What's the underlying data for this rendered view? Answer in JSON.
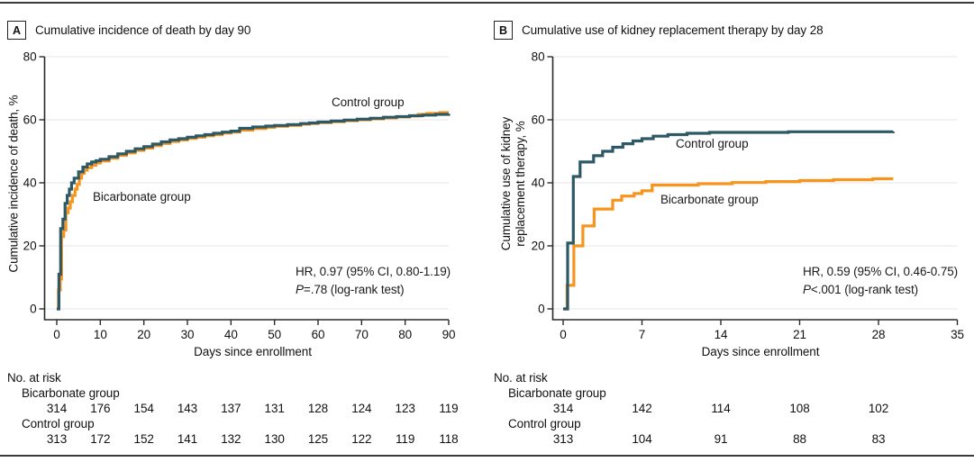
{
  "x_axis_label": "Days since enrollment",
  "risk_header": "No. at risk",
  "colors": {
    "control": "#2D5966",
    "bicarbonate": "#F7941E",
    "gridline": "#E4E4E4",
    "axis": "#2A2A2A",
    "rule": "#3A3A3A"
  },
  "chart_data": [
    {
      "panel_label": "A",
      "title": "Cumulative incidence of death by day 90",
      "type": "line",
      "subtype": "kaplan-meier-step",
      "ylabel": "Cumulative incidence of death, %",
      "ylabel_lines": [
        "Cumulative incidence of death, %"
      ],
      "xlabel": "Days since enrollment",
      "xlim": [
        0,
        90
      ],
      "ylim": [
        0,
        80
      ],
      "xticks": [
        0,
        10,
        20,
        30,
        40,
        50,
        60,
        70,
        80,
        90
      ],
      "yticks": [
        0,
        20,
        40,
        60,
        80
      ],
      "grid": "horizontal",
      "legend_position": "inline-labels",
      "series": [
        {
          "name": "Control group",
          "color": "#2D5966",
          "points": [
            [
              0,
              0
            ],
            [
              0.5,
              11
            ],
            [
              0.9,
              25.5
            ],
            [
              1.4,
              28.5
            ],
            [
              1.9,
              33.5
            ],
            [
              2.4,
              36
            ],
            [
              2.9,
              38
            ],
            [
              3.4,
              40
            ],
            [
              4,
              41.5
            ],
            [
              5,
              43.5
            ],
            [
              6,
              45
            ],
            [
              7,
              46
            ],
            [
              8,
              46.6
            ],
            [
              9,
              47
            ],
            [
              10,
              47.5
            ],
            [
              12,
              48.3
            ],
            [
              14,
              49.2
            ],
            [
              16,
              50
            ],
            [
              18,
              50.8
            ],
            [
              20,
              51.5
            ],
            [
              22,
              52.3
            ],
            [
              24,
              53
            ],
            [
              26,
              53.6
            ],
            [
              28,
              54
            ],
            [
              30,
              54.5
            ],
            [
              32,
              54.9
            ],
            [
              34,
              55.3
            ],
            [
              36,
              55.7
            ],
            [
              38,
              56.1
            ],
            [
              40,
              56.4
            ],
            [
              42,
              57.3
            ],
            [
              45,
              57.7
            ],
            [
              48,
              58
            ],
            [
              50,
              58.2
            ],
            [
              53,
              58.5
            ],
            [
              56,
              58.8
            ],
            [
              58,
              59
            ],
            [
              60,
              59.3
            ],
            [
              63,
              59.6
            ],
            [
              66,
              59.9
            ],
            [
              69,
              60.2
            ],
            [
              72,
              60.5
            ],
            [
              75,
              60.8
            ],
            [
              78,
              61
            ],
            [
              81,
              61.3
            ],
            [
              84,
              61.5
            ],
            [
              87,
              61.7
            ],
            [
              90,
              61.9
            ]
          ]
        },
        {
          "name": "Bicarbonate group",
          "color": "#F7941E",
          "points": [
            [
              0,
              0
            ],
            [
              0.4,
              6
            ],
            [
              0.8,
              9.5
            ],
            [
              1.1,
              23
            ],
            [
              1.6,
              25
            ],
            [
              2.1,
              30.5
            ],
            [
              2.6,
              32
            ],
            [
              3.1,
              34
            ],
            [
              3.6,
              36
            ],
            [
              4.2,
              38
            ],
            [
              4.7,
              39.5
            ],
            [
              5.2,
              41.5
            ],
            [
              5.7,
              43
            ],
            [
              6.3,
              44
            ],
            [
              7,
              44.8
            ],
            [
              8,
              45.6
            ],
            [
              9,
              46.3
            ],
            [
              10,
              46.9
            ],
            [
              12,
              47.8
            ],
            [
              14,
              48.7
            ],
            [
              16,
              49.5
            ],
            [
              18,
              50.3
            ],
            [
              20,
              51
            ],
            [
              22,
              51.8
            ],
            [
              24,
              52.5
            ],
            [
              26,
              53.1
            ],
            [
              28,
              53.6
            ],
            [
              30,
              54.1
            ],
            [
              32,
              54.5
            ],
            [
              34,
              54.9
            ],
            [
              36,
              55.3
            ],
            [
              38,
              55.8
            ],
            [
              40,
              56.1
            ],
            [
              42,
              56.7
            ],
            [
              45,
              57.2
            ],
            [
              48,
              57.6
            ],
            [
              50,
              57.9
            ],
            [
              53,
              58.2
            ],
            [
              56,
              58.6
            ],
            [
              58,
              58.8
            ],
            [
              60,
              59.1
            ],
            [
              63,
              59.4
            ],
            [
              66,
              59.7
            ],
            [
              69,
              60
            ],
            [
              72,
              60.3
            ],
            [
              75,
              60.6
            ],
            [
              78,
              60.9
            ],
            [
              81,
              61.2
            ],
            [
              83,
              61.7
            ],
            [
              85,
              62
            ],
            [
              88,
              62.3
            ],
            [
              90,
              62.3
            ]
          ]
        }
      ],
      "annotation": {
        "hr": "HR, 0.97 (95% CI, 0.80-1.19)",
        "p_label": "P",
        "p_text": "=.78 (log-rank test)"
      },
      "risk_table": {
        "header": "No. at risk",
        "rows": [
          {
            "label": "Bicarbonate group",
            "values": [
              "314",
              "176",
              "154",
              "143",
              "137",
              "131",
              "128",
              "124",
              "123",
              "119"
            ]
          },
          {
            "label": "Control group",
            "values": [
              "313",
              "172",
              "152",
              "141",
              "132",
              "130",
              "125",
              "122",
              "119",
              "118"
            ]
          }
        ]
      }
    },
    {
      "panel_label": "B",
      "title": "Cumulative use of kidney replacement therapy by day 28",
      "type": "line",
      "subtype": "kaplan-meier-step",
      "ylabel": "Cumulative use of kidney replacement therapy, %",
      "ylabel_lines": [
        "Cumulative use of kidney",
        "replacement therapy, %"
      ],
      "xlabel": "Days since enrollment",
      "xlim": [
        0,
        35
      ],
      "ylim": [
        0,
        80
      ],
      "xticks": [
        0,
        7,
        14,
        21,
        28,
        35
      ],
      "yticks": [
        0,
        20,
        40,
        60,
        80
      ],
      "grid": "horizontal",
      "legend_position": "inline-labels",
      "series": [
        {
          "name": "Control group",
          "color": "#2D5966",
          "points": [
            [
              0,
              0
            ],
            [
              0.4,
              20.9
            ],
            [
              0.9,
              42
            ],
            [
              1.5,
              46.6
            ],
            [
              2.7,
              48.6
            ],
            [
              3.5,
              50
            ],
            [
              4.4,
              51.3
            ],
            [
              5.3,
              52.4
            ],
            [
              6.2,
              53.3
            ],
            [
              7,
              54
            ],
            [
              8,
              54.8
            ],
            [
              9.3,
              55.3
            ],
            [
              11,
              55.7
            ],
            [
              13,
              56
            ],
            [
              20,
              56.2
            ],
            [
              29.3,
              56.3
            ]
          ]
        },
        {
          "name": "Bicarbonate group",
          "color": "#F7941E",
          "points": [
            [
              0,
              0
            ],
            [
              0.35,
              7.5
            ],
            [
              0.95,
              20
            ],
            [
              1.75,
              26.3
            ],
            [
              2.75,
              31.7
            ],
            [
              4.4,
              34.5
            ],
            [
              5.2,
              35.8
            ],
            [
              6.3,
              36.6
            ],
            [
              7,
              37.5
            ],
            [
              7.9,
              39.3
            ],
            [
              12,
              39.7
            ],
            [
              15,
              40.1
            ],
            [
              18,
              40.4
            ],
            [
              21,
              40.7
            ],
            [
              24,
              41
            ],
            [
              27.5,
              41.3
            ],
            [
              29.3,
              41.3
            ]
          ]
        }
      ],
      "annotation": {
        "hr": "HR, 0.59 (95% CI, 0.46-0.75)",
        "p_label": "P",
        "p_text": "<.001 (log-rank test)"
      },
      "risk_table": {
        "header": "No. at risk",
        "rows": [
          {
            "label": "Bicarbonate group",
            "values": [
              "314",
              "142",
              "114",
              "108",
              "102"
            ]
          },
          {
            "label": "Control group",
            "values": [
              "313",
              "104",
              "91",
              "88",
              "83"
            ]
          }
        ]
      }
    }
  ]
}
